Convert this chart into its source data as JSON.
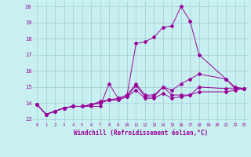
{
  "xlabel": "Windchill (Refroidissement éolien,°C)",
  "background_color": "#c8f0f0",
  "grid_color": "#a0c8d8",
  "line_color": "#990099",
  "xlim": [
    -0.5,
    23.5
  ],
  "ylim": [
    12.8,
    20.3
  ],
  "xticks": [
    0,
    1,
    2,
    3,
    4,
    5,
    6,
    7,
    8,
    9,
    10,
    11,
    12,
    13,
    14,
    15,
    16,
    17,
    18,
    19,
    20,
    21,
    22,
    23
  ],
  "yticks": [
    13,
    14,
    15,
    16,
    17,
    18,
    19,
    20
  ],
  "series": [
    {
      "x": [
        0,
        1,
        2,
        3,
        4,
        5,
        6,
        7,
        8,
        9,
        10,
        11,
        12,
        13,
        14,
        15,
        16,
        17,
        18,
        21,
        22,
        23
      ],
      "y": [
        13.9,
        13.3,
        13.5,
        13.7,
        13.8,
        13.8,
        13.8,
        13.8,
        15.2,
        14.3,
        14.5,
        17.7,
        17.8,
        18.1,
        18.7,
        18.8,
        20.0,
        19.1,
        17.0,
        15.5,
        14.9,
        14.9
      ]
    },
    {
      "x": [
        0,
        1,
        2,
        3,
        4,
        5,
        6,
        7,
        8,
        9,
        10,
        11,
        12,
        13,
        14,
        15,
        16,
        17,
        18,
        21,
        22,
        23
      ],
      "y": [
        13.9,
        13.3,
        13.5,
        13.7,
        13.8,
        13.8,
        13.9,
        14.0,
        14.2,
        14.2,
        14.4,
        15.1,
        14.4,
        14.4,
        15.0,
        14.5,
        14.5,
        14.5,
        15.0,
        14.9,
        14.9,
        14.9
      ]
    },
    {
      "x": [
        0,
        1,
        2,
        3,
        4,
        5,
        6,
        7,
        8,
        9,
        10,
        11,
        12,
        13,
        14,
        15,
        16,
        17,
        18,
        21,
        22,
        23
      ],
      "y": [
        13.9,
        13.3,
        13.5,
        13.7,
        13.8,
        13.8,
        13.9,
        14.1,
        14.2,
        14.3,
        14.5,
        15.2,
        14.5,
        14.5,
        15.0,
        14.8,
        15.2,
        15.5,
        15.8,
        15.5,
        15.0,
        14.9
      ]
    },
    {
      "x": [
        0,
        1,
        2,
        3,
        4,
        5,
        6,
        7,
        8,
        9,
        10,
        11,
        12,
        13,
        14,
        15,
        16,
        17,
        18,
        21,
        22,
        23
      ],
      "y": [
        13.9,
        13.3,
        13.5,
        13.7,
        13.8,
        13.8,
        13.9,
        14.0,
        14.2,
        14.2,
        14.4,
        14.8,
        14.3,
        14.3,
        14.6,
        14.3,
        14.4,
        14.5,
        14.7,
        14.7,
        14.8,
        14.9
      ]
    }
  ]
}
